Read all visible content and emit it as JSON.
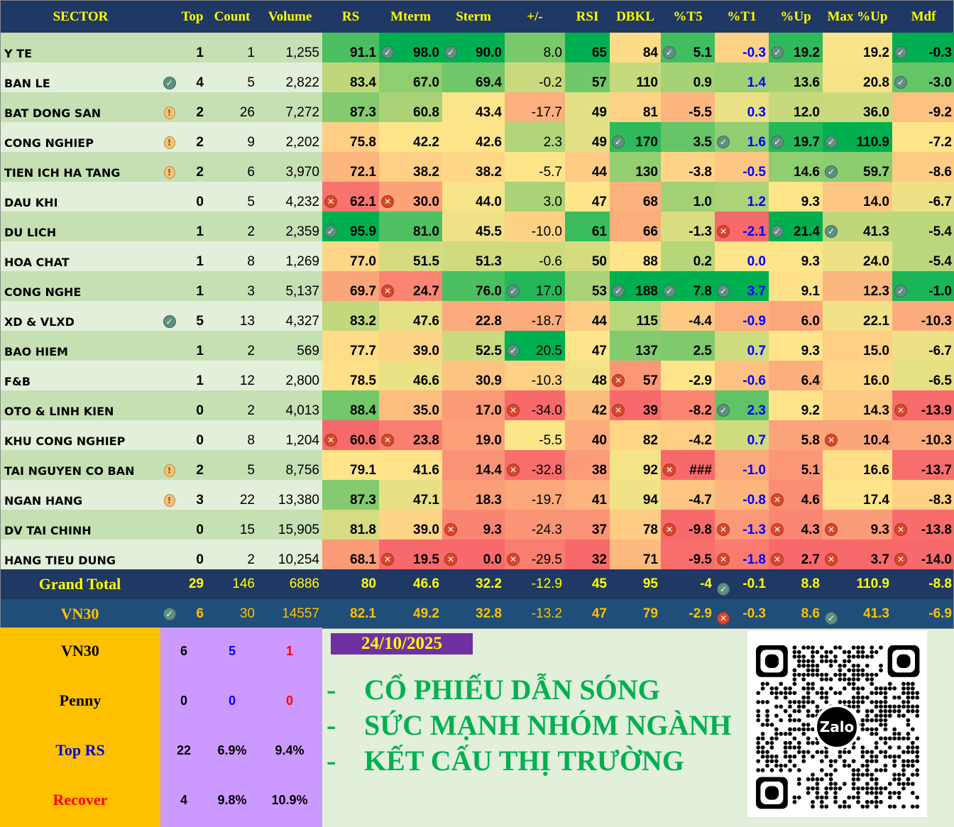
{
  "headers": [
    "SECTOR",
    "",
    "Top",
    "Count",
    "Volume",
    "RS",
    "Mterm",
    "Sterm",
    "+/-",
    "RSI",
    "DBKL",
    "%T5",
    "%T1",
    "%Up",
    "Max %Up",
    "Mdf"
  ],
  "rows": [
    {
      "sector": "Y TE",
      "flag": null,
      "top": "1",
      "count": "1",
      "volume": "1,255",
      "cells": [
        "91.1",
        "98.0",
        "90.0",
        "8.0",
        "65",
        "84",
        "5.1",
        "-0.3",
        "19.2",
        "19.2",
        "-0.3"
      ],
      "icons": [
        null,
        "check",
        "check",
        null,
        null,
        null,
        "check",
        null,
        "check",
        null,
        "check"
      ]
    },
    {
      "sector": "BAN LE",
      "flag": "check",
      "top": "4",
      "count": "5",
      "volume": "2,822",
      "cells": [
        "83.4",
        "67.0",
        "69.4",
        "-0.2",
        "57",
        "110",
        "0.9",
        "1.4",
        "13.6",
        "20.8",
        "-3.0"
      ],
      "icons": [
        null,
        null,
        null,
        null,
        null,
        null,
        null,
        null,
        null,
        null,
        "check"
      ]
    },
    {
      "sector": "BAT DONG SAN",
      "flag": "warn",
      "top": "2",
      "count": "26",
      "volume": "7,272",
      "cells": [
        "87.3",
        "60.8",
        "43.4",
        "-17.7",
        "49",
        "81",
        "-5.5",
        "0.3",
        "12.0",
        "36.0",
        "-9.2"
      ],
      "icons": [
        null,
        null,
        null,
        null,
        null,
        null,
        null,
        null,
        null,
        null,
        null
      ]
    },
    {
      "sector": "CONG NGHIEP",
      "flag": "warn",
      "top": "2",
      "count": "9",
      "volume": "2,202",
      "cells": [
        "75.8",
        "42.2",
        "42.6",
        "2.3",
        "49",
        "170",
        "3.5",
        "1.6",
        "19.7",
        "110.9",
        "-7.2"
      ],
      "icons": [
        null,
        null,
        null,
        null,
        null,
        "check",
        null,
        "check",
        "check",
        "check",
        null
      ]
    },
    {
      "sector": "TIEN ICH HA TANG",
      "flag": "warn",
      "top": "2",
      "count": "6",
      "volume": "3,970",
      "cells": [
        "72.1",
        "38.2",
        "38.2",
        "-5.7",
        "44",
        "130",
        "-3.8",
        "-0.5",
        "14.6",
        "59.7",
        "-8.6"
      ],
      "icons": [
        null,
        null,
        null,
        null,
        null,
        null,
        null,
        null,
        null,
        "check",
        null
      ]
    },
    {
      "sector": "DAU KHI",
      "flag": null,
      "top": "0",
      "count": "5",
      "volume": "4,232",
      "cells": [
        "62.1",
        "30.0",
        "44.0",
        "3.0",
        "47",
        "68",
        "1.0",
        "1.2",
        "9.3",
        "14.0",
        "-6.7"
      ],
      "icons": [
        "x",
        "x",
        null,
        null,
        null,
        null,
        null,
        null,
        null,
        null,
        null
      ]
    },
    {
      "sector": "DU LICH",
      "flag": null,
      "top": "1",
      "count": "2",
      "volume": "2,359",
      "cells": [
        "95.9",
        "81.0",
        "45.5",
        "-10.0",
        "61",
        "66",
        "-1.3",
        "-2.1",
        "21.4",
        "41.3",
        "-5.4"
      ],
      "icons": [
        "check",
        null,
        null,
        null,
        null,
        null,
        null,
        "x",
        "check",
        "check",
        null
      ]
    },
    {
      "sector": "HOA CHAT",
      "flag": null,
      "top": "1",
      "count": "8",
      "volume": "1,269",
      "cells": [
        "77.0",
        "51.5",
        "51.3",
        "-0.6",
        "50",
        "88",
        "0.2",
        "0.0",
        "9.3",
        "24.0",
        "-5.4"
      ],
      "icons": [
        null,
        null,
        null,
        null,
        null,
        null,
        null,
        null,
        null,
        null,
        null
      ]
    },
    {
      "sector": "CONG NGHE",
      "flag": null,
      "top": "1",
      "count": "3",
      "volume": "5,137",
      "cells": [
        "69.7",
        "24.7",
        "76.0",
        "17.0",
        "53",
        "188",
        "7.8",
        "3.7",
        "9.1",
        "12.3",
        "-1.0"
      ],
      "icons": [
        null,
        "x",
        null,
        "check",
        null,
        "check",
        "check",
        "check",
        null,
        null,
        "check"
      ]
    },
    {
      "sector": "XD & VLXD",
      "flag": "check",
      "top": "5",
      "count": "13",
      "volume": "4,327",
      "cells": [
        "83.2",
        "47.6",
        "22.8",
        "-18.7",
        "44",
        "115",
        "-4.4",
        "-0.9",
        "6.0",
        "22.1",
        "-10.3"
      ],
      "icons": [
        null,
        null,
        null,
        null,
        null,
        null,
        null,
        null,
        null,
        null,
        null
      ]
    },
    {
      "sector": "BAO HIEM",
      "flag": null,
      "top": "1",
      "count": "2",
      "volume": "569",
      "cells": [
        "77.7",
        "39.0",
        "52.5",
        "20.5",
        "47",
        "137",
        "2.5",
        "0.7",
        "9.3",
        "15.0",
        "-6.7"
      ],
      "icons": [
        null,
        null,
        null,
        "check",
        null,
        null,
        null,
        null,
        null,
        null,
        null
      ]
    },
    {
      "sector": "F&B",
      "flag": null,
      "top": "1",
      "count": "12",
      "volume": "2,800",
      "cells": [
        "78.5",
        "46.6",
        "30.9",
        "-10.3",
        "48",
        "57",
        "-2.9",
        "-0.6",
        "6.4",
        "16.0",
        "-6.5"
      ],
      "icons": [
        null,
        null,
        null,
        null,
        null,
        "x",
        null,
        null,
        null,
        null,
        null
      ]
    },
    {
      "sector": "OTO & LINH KIEN",
      "flag": null,
      "top": "0",
      "count": "2",
      "volume": "4,013",
      "cells": [
        "88.4",
        "35.0",
        "17.0",
        "-34.0",
        "42",
        "39",
        "-8.2",
        "2.3",
        "9.2",
        "14.3",
        "-13.9"
      ],
      "icons": [
        null,
        null,
        null,
        "x",
        null,
        "x",
        null,
        "check",
        null,
        null,
        "x"
      ]
    },
    {
      "sector": "KHU CONG NGHIEP",
      "flag": null,
      "top": "0",
      "count": "8",
      "volume": "1,204",
      "cells": [
        "60.6",
        "23.8",
        "19.0",
        "-5.5",
        "40",
        "82",
        "-4.2",
        "0.7",
        "5.8",
        "10.4",
        "-10.3"
      ],
      "icons": [
        "x",
        "x",
        null,
        null,
        null,
        null,
        null,
        null,
        null,
        "x",
        null
      ]
    },
    {
      "sector": "TAI NGUYEN CO BAN",
      "flag": "warn",
      "top": "2",
      "count": "5",
      "volume": "8,756",
      "cells": [
        "79.1",
        "41.6",
        "14.4",
        "-32.8",
        "38",
        "92",
        "###",
        "-1.0",
        "5.1",
        "16.6",
        "-13.7"
      ],
      "icons": [
        null,
        null,
        null,
        "x",
        null,
        null,
        "x",
        null,
        null,
        null,
        null
      ]
    },
    {
      "sector": "NGAN HANG",
      "flag": "warn",
      "top": "3",
      "count": "22",
      "volume": "13,380",
      "cells": [
        "87.3",
        "47.1",
        "18.3",
        "-19.7",
        "41",
        "94",
        "-4.7",
        "-0.8",
        "4.6",
        "17.4",
        "-8.3"
      ],
      "icons": [
        null,
        null,
        null,
        null,
        null,
        null,
        null,
        null,
        "x",
        null,
        null
      ]
    },
    {
      "sector": "DV TAI CHINH",
      "flag": null,
      "top": "0",
      "count": "15",
      "volume": "15,905",
      "cells": [
        "81.8",
        "39.0",
        "9.3",
        "-24.3",
        "37",
        "78",
        "-9.8",
        "-1.3",
        "4.3",
        "9.3",
        "-13.8"
      ],
      "icons": [
        null,
        null,
        "x",
        null,
        null,
        null,
        "x",
        "x",
        "x",
        "x",
        "x"
      ]
    },
    {
      "sector": "HANG TIEU DUNG",
      "flag": null,
      "top": "0",
      "count": "2",
      "volume": "10,254",
      "cells": [
        "68.1",
        "19.5",
        "0.0",
        "-29.5",
        "32",
        "71",
        "-9.5",
        "-1.8",
        "2.7",
        "3.7",
        "-14.0"
      ],
      "icons": [
        null,
        "x",
        "x",
        "x",
        null,
        null,
        null,
        "x",
        "x",
        "x",
        "x"
      ]
    }
  ],
  "grand_total": {
    "label": "Grand Total",
    "flag": null,
    "top": "29",
    "count": "146",
    "volume": "6886",
    "cells": [
      "80",
      "46.6",
      "32.2",
      "-12.9",
      "45",
      "95",
      "-4",
      "-0.1",
      "8.8",
      "110.9",
      "-8.8"
    ],
    "icons": [
      null,
      null,
      null,
      null,
      null,
      null,
      null,
      "check",
      null,
      null,
      null
    ]
  },
  "vn30": {
    "label": "VN30",
    "flag": "check",
    "top": "6",
    "count": "30",
    "volume": "14557",
    "cells": [
      "82.1",
      "49.2",
      "32.8",
      "-13.2",
      "47",
      "79",
      "-2.9",
      "-0.3",
      "8.6",
      "41.3",
      "-6.9"
    ],
    "icons": [
      null,
      null,
      null,
      null,
      null,
      null,
      null,
      "x",
      null,
      "check",
      null
    ]
  },
  "summary": [
    {
      "label": "VN30",
      "label_color": "#000000",
      "values": [
        "6",
        "5",
        "1"
      ],
      "colors": [
        "#000000",
        "#0000ff",
        "#ff0000"
      ]
    },
    {
      "label": "Penny",
      "label_color": "#000000",
      "values": [
        "0",
        "0",
        "0"
      ],
      "colors": [
        "#000000",
        "#0000ff",
        "#ff0000"
      ]
    },
    {
      "label": "Top RS",
      "label_color": "#0000cc",
      "values": [
        "22",
        "6.9%",
        "9.4%"
      ],
      "colors": [
        "#000000",
        "#000000",
        "#000000"
      ]
    },
    {
      "label": "Recover",
      "label_color": "#ff0000",
      "values": [
        "4",
        "9.8%",
        "10.9%"
      ],
      "colors": [
        "#000000",
        "#000000",
        "#000000"
      ]
    }
  ],
  "date": "24/10/2025",
  "headlines": [
    "CỔ PHIẾU DẪN SÓNG",
    "SỨC MẠNH NHÓM NGÀNH",
    "KẾT CẤU THỊ TRƯỜNG"
  ],
  "headline_bullet": "-",
  "qr": {
    "logo": "Zalo"
  },
  "colors": {
    "header_bg": "#203864",
    "header_text": "#ffff00",
    "scale_low": "#f8696b",
    "scale_mid": "#ffe58a",
    "scale_high": "#00b050",
    "t1_text": "#0000ff",
    "band_a": "#e2efda",
    "band_b": "#c6e0b4"
  }
}
